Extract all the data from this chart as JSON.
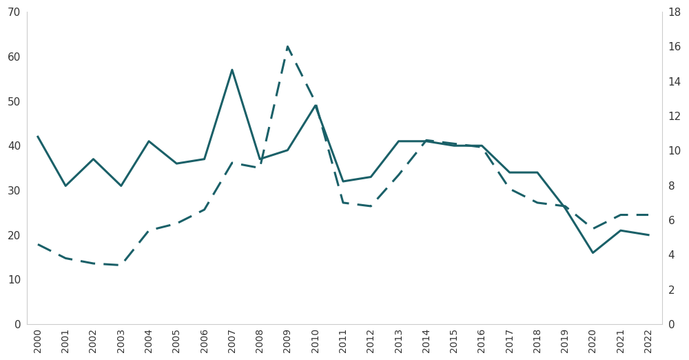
{
  "years": [
    2000,
    2001,
    2002,
    2003,
    2004,
    2005,
    2006,
    2007,
    2008,
    2009,
    2010,
    2011,
    2012,
    2013,
    2014,
    2015,
    2016,
    2017,
    2018,
    2019,
    2020,
    2021,
    2022
  ],
  "solid_line": [
    42,
    31,
    37,
    31,
    41,
    36,
    37,
    57,
    37,
    39,
    49,
    32,
    33,
    41,
    41,
    40,
    40,
    34,
    34,
    26,
    16,
    21,
    20
  ],
  "dashed_line": [
    4.6,
    3.8,
    3.5,
    3.4,
    5.4,
    5.8,
    6.6,
    9.3,
    9.0,
    16.0,
    12.8,
    7.0,
    6.8,
    8.6,
    10.6,
    10.4,
    10.2,
    7.8,
    7.0,
    6.8,
    5.5,
    6.3,
    6.3
  ],
  "color": "#1a6068",
  "left_ylim": [
    0,
    70
  ],
  "right_ylim": [
    0,
    18
  ],
  "left_yticks": [
    0,
    10,
    20,
    30,
    40,
    50,
    60,
    70
  ],
  "right_yticks": [
    0,
    2,
    4,
    6,
    8,
    10,
    12,
    14,
    16,
    18
  ],
  "background_color": "#ffffff",
  "line_width": 2.2,
  "dashed_linewidth": 2.2,
  "tick_fontsize": 11,
  "xtick_fontsize": 10
}
